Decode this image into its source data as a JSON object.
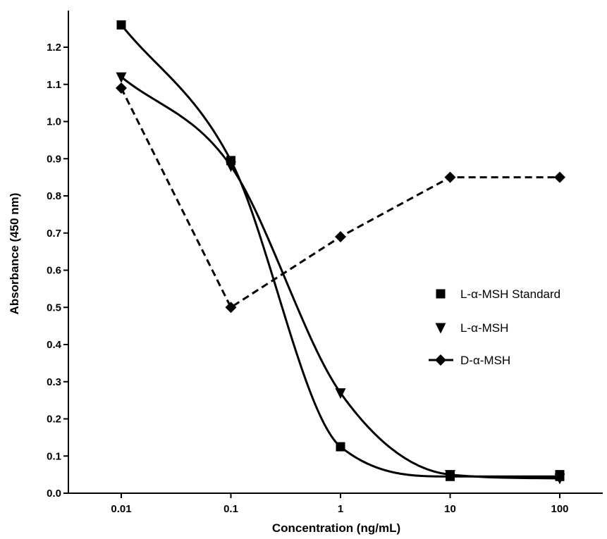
{
  "chart_data": {
    "type": "line",
    "title": "",
    "xlabel": "Concentration (ng/mL)",
    "ylabel": "Absorbance (450 nm)",
    "x_scale": "log",
    "x": [
      0.01,
      0.1,
      1,
      10,
      100
    ],
    "x_tick_labels": [
      "0.01",
      "0.1",
      "1",
      "10",
      "100"
    ],
    "ylim": [
      0.0,
      1.3
    ],
    "y_ticks": [
      0.0,
      0.1,
      0.2,
      0.3,
      0.4,
      0.5,
      0.6,
      0.7,
      0.8,
      0.9,
      1.0,
      1.1,
      1.2
    ],
    "y_tick_labels": [
      "0.0",
      "0.1",
      "0.2",
      "0.3",
      "0.4",
      "0.5",
      "0.6",
      "0.7",
      "0.8",
      "0.9",
      "1.0",
      "1.1",
      "1.2"
    ],
    "grid": false,
    "legend_position": "right",
    "series": [
      {
        "name": "L-α-MSH Standard",
        "marker": "square",
        "line": "fitted-curve",
        "values": [
          1.26,
          0.895,
          0.125,
          0.045,
          0.045
        ],
        "extra_points": [
          [
            100,
            0.05
          ]
        ]
      },
      {
        "name": "L-α-MSH",
        "marker": "triangle-down",
        "line": "fitted-curve",
        "values": [
          1.12,
          0.88,
          0.27,
          0.05,
          0.04
        ]
      },
      {
        "name": "D-α-MSH",
        "marker": "diamond",
        "line": "dashed",
        "values": [
          1.09,
          0.5,
          0.69,
          0.85,
          0.85
        ]
      }
    ],
    "colors": {
      "series": "#000000",
      "axis": "#000000",
      "background": "#ffffff"
    }
  }
}
